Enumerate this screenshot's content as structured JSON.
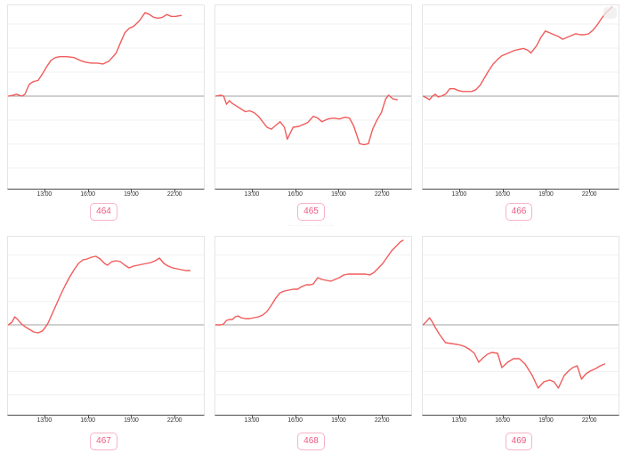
{
  "page": {
    "background": "#ffffff"
  },
  "colors": {
    "line": "#f15b5b",
    "zero_line": "#a0a0a0",
    "grid": "#f0f0f0",
    "plot_border": "#e5e5e5",
    "axis_line": "#4a4a4a",
    "tick_label": "#333333",
    "badge_border": "#f8b3c9",
    "badge_text": "#ec5a84",
    "title_text": "#a8a8a8"
  },
  "axis": {
    "domain_hours": [
      10.43,
      23.96
    ],
    "ticks": [
      {
        "hour": 13,
        "label": "13:00"
      },
      {
        "hour": 16,
        "label": "16:00"
      },
      {
        "hour": 19,
        "label": "19:00"
      },
      {
        "hour": 22,
        "label": "22:00"
      }
    ]
  },
  "chart_data": [
    {
      "type": "line",
      "badge_label": "464",
      "title": "· ·",
      "xlabel": "",
      "ylabel": "",
      "ylim": [
        -1,
        1
      ],
      "baseline": 0,
      "watermark": false,
      "points": [
        [
          10.45,
          0.0
        ],
        [
          10.8,
          0.01
        ],
        [
          11.0,
          0.02
        ],
        [
          11.2,
          0.01
        ],
        [
          11.4,
          0.0
        ],
        [
          11.6,
          0.02
        ],
        [
          11.9,
          0.13
        ],
        [
          12.2,
          0.16
        ],
        [
          12.5,
          0.17
        ],
        [
          12.8,
          0.24
        ],
        [
          13.1,
          0.32
        ],
        [
          13.4,
          0.39
        ],
        [
          13.7,
          0.42
        ],
        [
          14.0,
          0.43
        ],
        [
          14.5,
          0.43
        ],
        [
          15.0,
          0.42
        ],
        [
          15.4,
          0.39
        ],
        [
          15.8,
          0.37
        ],
        [
          16.2,
          0.36
        ],
        [
          16.6,
          0.36
        ],
        [
          17.0,
          0.35
        ],
        [
          17.4,
          0.38
        ],
        [
          17.9,
          0.47
        ],
        [
          18.2,
          0.58
        ],
        [
          18.5,
          0.69
        ],
        [
          18.8,
          0.74
        ],
        [
          19.1,
          0.76
        ],
        [
          19.5,
          0.82
        ],
        [
          19.9,
          0.91
        ],
        [
          20.2,
          0.89
        ],
        [
          20.5,
          0.86
        ],
        [
          20.8,
          0.85
        ],
        [
          21.1,
          0.86
        ],
        [
          21.4,
          0.89
        ],
        [
          21.7,
          0.87
        ],
        [
          22.0,
          0.87
        ],
        [
          22.4,
          0.88
        ]
      ]
    },
    {
      "type": "line",
      "badge_label": "465",
      "title": "· · ·",
      "xlabel": "",
      "ylabel": "",
      "ylim": [
        -1,
        1
      ],
      "baseline": 0,
      "watermark": false,
      "points": [
        [
          10.45,
          0.0
        ],
        [
          10.8,
          0.01
        ],
        [
          11.0,
          0.0
        ],
        [
          11.2,
          -0.09
        ],
        [
          11.4,
          -0.05
        ],
        [
          11.6,
          -0.08
        ],
        [
          11.9,
          -0.11
        ],
        [
          12.2,
          -0.14
        ],
        [
          12.5,
          -0.17
        ],
        [
          12.8,
          -0.16
        ],
        [
          13.1,
          -0.18
        ],
        [
          13.4,
          -0.22
        ],
        [
          13.7,
          -0.28
        ],
        [
          14.0,
          -0.34
        ],
        [
          14.3,
          -0.36
        ],
        [
          14.6,
          -0.32
        ],
        [
          14.9,
          -0.28
        ],
        [
          15.2,
          -0.34
        ],
        [
          15.4,
          -0.47
        ],
        [
          15.8,
          -0.34
        ],
        [
          16.2,
          -0.33
        ],
        [
          16.5,
          -0.31
        ],
        [
          16.8,
          -0.29
        ],
        [
          17.2,
          -0.22
        ],
        [
          17.5,
          -0.24
        ],
        [
          17.8,
          -0.28
        ],
        [
          18.2,
          -0.25
        ],
        [
          18.6,
          -0.24
        ],
        [
          19.0,
          -0.25
        ],
        [
          19.4,
          -0.23
        ],
        [
          19.7,
          -0.24
        ],
        [
          20.0,
          -0.33
        ],
        [
          20.4,
          -0.52
        ],
        [
          20.7,
          -0.53
        ],
        [
          21.0,
          -0.52
        ],
        [
          21.3,
          -0.36
        ],
        [
          21.6,
          -0.26
        ],
        [
          21.9,
          -0.18
        ],
        [
          22.2,
          -0.03
        ],
        [
          22.4,
          0.01
        ],
        [
          22.7,
          -0.03
        ],
        [
          23.0,
          -0.04
        ]
      ]
    },
    {
      "type": "line",
      "badge_label": "466",
      "title": "· ·",
      "xlabel": "",
      "ylabel": "",
      "ylim": [
        -1,
        1
      ],
      "baseline": 0,
      "watermark": true,
      "points": [
        [
          10.45,
          0.0
        ],
        [
          10.7,
          -0.02
        ],
        [
          10.9,
          -0.04
        ],
        [
          11.1,
          0.0
        ],
        [
          11.3,
          0.02
        ],
        [
          11.5,
          -0.01
        ],
        [
          11.7,
          0.0
        ],
        [
          12.0,
          0.02
        ],
        [
          12.3,
          0.08
        ],
        [
          12.6,
          0.08
        ],
        [
          12.9,
          0.06
        ],
        [
          13.2,
          0.05
        ],
        [
          13.5,
          0.05
        ],
        [
          13.8,
          0.05
        ],
        [
          14.1,
          0.07
        ],
        [
          14.4,
          0.12
        ],
        [
          14.7,
          0.2
        ],
        [
          15.0,
          0.28
        ],
        [
          15.3,
          0.35
        ],
        [
          15.6,
          0.4
        ],
        [
          15.9,
          0.44
        ],
        [
          16.2,
          0.46
        ],
        [
          16.5,
          0.48
        ],
        [
          16.8,
          0.5
        ],
        [
          17.1,
          0.51
        ],
        [
          17.4,
          0.52
        ],
        [
          17.7,
          0.5
        ],
        [
          17.9,
          0.47
        ],
        [
          18.3,
          0.55
        ],
        [
          18.6,
          0.64
        ],
        [
          18.9,
          0.71
        ],
        [
          19.2,
          0.69
        ],
        [
          19.5,
          0.67
        ],
        [
          19.8,
          0.65
        ],
        [
          20.1,
          0.62
        ],
        [
          20.4,
          0.64
        ],
        [
          20.7,
          0.66
        ],
        [
          21.0,
          0.68
        ],
        [
          21.3,
          0.67
        ],
        [
          21.6,
          0.67
        ],
        [
          21.9,
          0.68
        ],
        [
          22.2,
          0.72
        ],
        [
          22.5,
          0.78
        ],
        [
          22.8,
          0.85
        ],
        [
          23.1,
          0.91
        ],
        [
          23.5,
          0.97
        ]
      ]
    },
    {
      "type": "line",
      "badge_label": "467",
      "title": "· ·",
      "xlabel": "",
      "ylabel": "",
      "ylim": [
        -1,
        1
      ],
      "baseline": 0,
      "watermark": false,
      "points": [
        [
          10.45,
          0.0
        ],
        [
          10.7,
          0.03
        ],
        [
          10.9,
          0.09
        ],
        [
          11.1,
          0.06
        ],
        [
          11.3,
          0.02
        ],
        [
          11.6,
          -0.02
        ],
        [
          11.9,
          -0.05
        ],
        [
          12.2,
          -0.08
        ],
        [
          12.5,
          -0.09
        ],
        [
          12.8,
          -0.07
        ],
        [
          13.0,
          -0.03
        ],
        [
          13.2,
          0.02
        ],
        [
          13.5,
          0.13
        ],
        [
          13.8,
          0.24
        ],
        [
          14.1,
          0.35
        ],
        [
          14.4,
          0.45
        ],
        [
          14.7,
          0.54
        ],
        [
          15.0,
          0.62
        ],
        [
          15.3,
          0.69
        ],
        [
          15.6,
          0.73
        ],
        [
          15.9,
          0.74
        ],
        [
          16.2,
          0.76
        ],
        [
          16.5,
          0.77
        ],
        [
          16.8,
          0.74
        ],
        [
          17.1,
          0.69
        ],
        [
          17.3,
          0.67
        ],
        [
          17.6,
          0.71
        ],
        [
          17.9,
          0.72
        ],
        [
          18.2,
          0.71
        ],
        [
          18.5,
          0.67
        ],
        [
          18.8,
          0.64
        ],
        [
          19.1,
          0.66
        ],
        [
          19.4,
          0.67
        ],
        [
          19.7,
          0.68
        ],
        [
          20.0,
          0.69
        ],
        [
          20.3,
          0.7
        ],
        [
          20.6,
          0.72
        ],
        [
          20.9,
          0.75
        ],
        [
          21.2,
          0.69
        ],
        [
          21.5,
          0.66
        ],
        [
          21.8,
          0.64
        ],
        [
          22.1,
          0.63
        ],
        [
          22.4,
          0.62
        ],
        [
          22.7,
          0.61
        ],
        [
          23.0,
          0.61
        ]
      ]
    },
    {
      "type": "line",
      "badge_label": "468",
      "title": "··· ·· ····· ····· ···",
      "xlabel": "",
      "ylabel": "",
      "ylim": [
        -1,
        1
      ],
      "baseline": 0,
      "watermark": false,
      "points": [
        [
          10.45,
          0.0
        ],
        [
          10.8,
          0.0
        ],
        [
          11.0,
          0.01
        ],
        [
          11.2,
          0.05
        ],
        [
          11.4,
          0.06
        ],
        [
          11.6,
          0.06
        ],
        [
          11.8,
          0.09
        ],
        [
          12.0,
          0.1
        ],
        [
          12.2,
          0.08
        ],
        [
          12.5,
          0.07
        ],
        [
          12.8,
          0.07
        ],
        [
          13.1,
          0.08
        ],
        [
          13.4,
          0.09
        ],
        [
          13.7,
          0.11
        ],
        [
          14.0,
          0.15
        ],
        [
          14.3,
          0.22
        ],
        [
          14.6,
          0.3
        ],
        [
          14.9,
          0.36
        ],
        [
          15.2,
          0.38
        ],
        [
          15.5,
          0.39
        ],
        [
          15.8,
          0.4
        ],
        [
          16.1,
          0.4
        ],
        [
          16.4,
          0.43
        ],
        [
          16.7,
          0.45
        ],
        [
          17.0,
          0.45
        ],
        [
          17.2,
          0.46
        ],
        [
          17.5,
          0.53
        ],
        [
          17.8,
          0.51
        ],
        [
          18.1,
          0.5
        ],
        [
          18.4,
          0.49
        ],
        [
          18.7,
          0.51
        ],
        [
          19.0,
          0.53
        ],
        [
          19.3,
          0.56
        ],
        [
          19.6,
          0.57
        ],
        [
          19.9,
          0.57
        ],
        [
          20.2,
          0.57
        ],
        [
          20.5,
          0.57
        ],
        [
          20.8,
          0.57
        ],
        [
          21.1,
          0.56
        ],
        [
          21.4,
          0.59
        ],
        [
          21.7,
          0.64
        ],
        [
          22.0,
          0.69
        ],
        [
          22.3,
          0.76
        ],
        [
          22.6,
          0.83
        ],
        [
          22.9,
          0.88
        ],
        [
          23.2,
          0.93
        ],
        [
          23.4,
          0.95
        ]
      ]
    },
    {
      "type": "line",
      "badge_label": "469",
      "title": "· ·",
      "xlabel": "",
      "ylabel": "",
      "ylim": [
        -1,
        1
      ],
      "baseline": 0,
      "watermark": false,
      "points": [
        [
          10.45,
          0.0
        ],
        [
          10.7,
          0.04
        ],
        [
          10.9,
          0.08
        ],
        [
          11.1,
          0.03
        ],
        [
          11.3,
          -0.03
        ],
        [
          11.6,
          -0.11
        ],
        [
          12.0,
          -0.2
        ],
        [
          12.4,
          -0.21
        ],
        [
          12.8,
          -0.22
        ],
        [
          13.1,
          -0.23
        ],
        [
          13.4,
          -0.25
        ],
        [
          13.7,
          -0.28
        ],
        [
          14.0,
          -0.32
        ],
        [
          14.3,
          -0.42
        ],
        [
          14.6,
          -0.37
        ],
        [
          14.9,
          -0.33
        ],
        [
          15.2,
          -0.31
        ],
        [
          15.6,
          -0.32
        ],
        [
          15.9,
          -0.48
        ],
        [
          16.3,
          -0.42
        ],
        [
          16.7,
          -0.38
        ],
        [
          17.1,
          -0.38
        ],
        [
          17.5,
          -0.44
        ],
        [
          18.0,
          -0.57
        ],
        [
          18.4,
          -0.71
        ],
        [
          18.8,
          -0.64
        ],
        [
          19.2,
          -0.62
        ],
        [
          19.5,
          -0.64
        ],
        [
          19.8,
          -0.71
        ],
        [
          20.2,
          -0.57
        ],
        [
          20.5,
          -0.52
        ],
        [
          20.8,
          -0.48
        ],
        [
          21.1,
          -0.46
        ],
        [
          21.4,
          -0.61
        ],
        [
          21.7,
          -0.55
        ],
        [
          22.0,
          -0.52
        ],
        [
          22.4,
          -0.49
        ],
        [
          22.7,
          -0.46
        ],
        [
          23.0,
          -0.44
        ]
      ]
    }
  ]
}
